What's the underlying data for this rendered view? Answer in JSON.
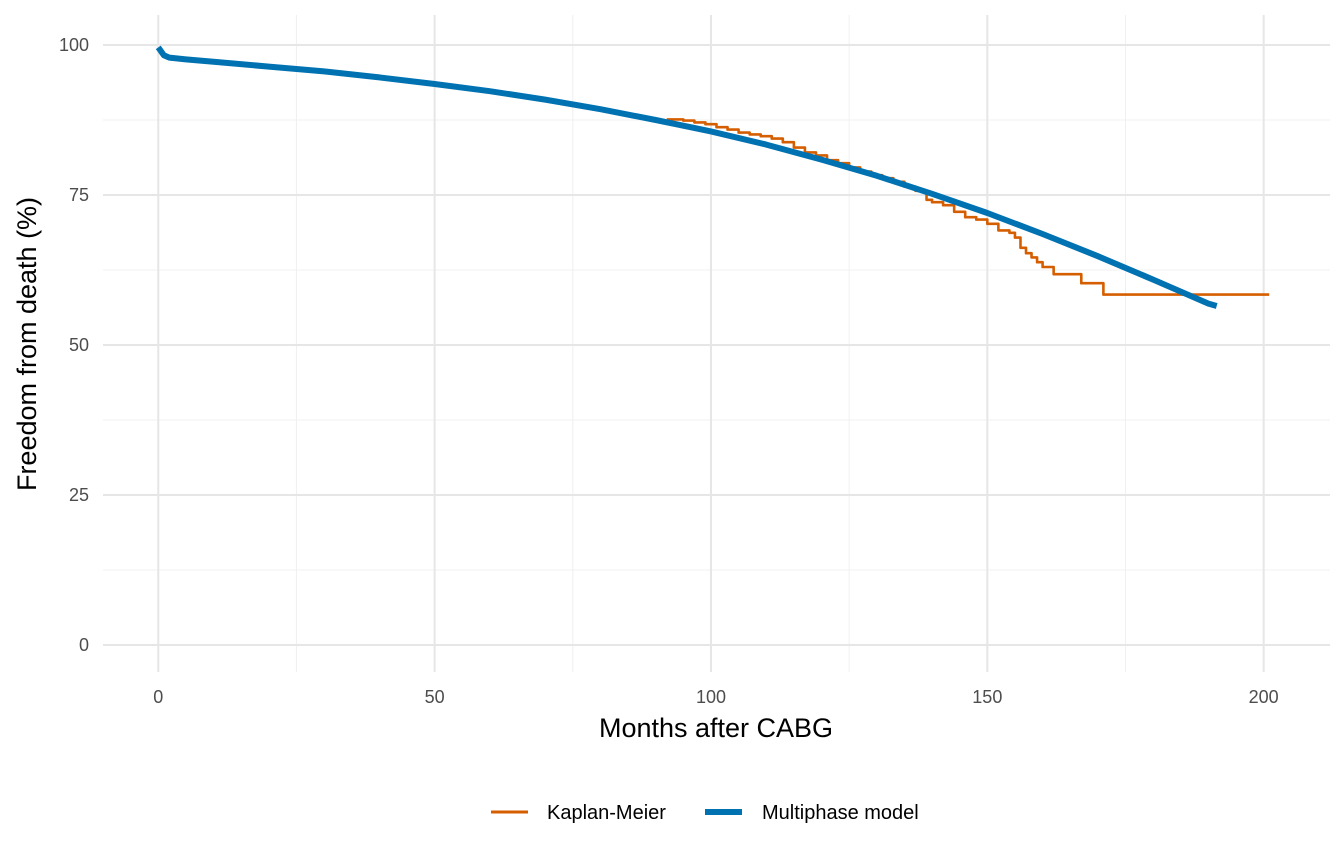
{
  "chart_data": {
    "type": "line",
    "title": "",
    "xlabel": "Months after CABG",
    "ylabel": "Freedom from death (%)",
    "xlim": [
      -10,
      212
    ],
    "ylim": [
      -4.5,
      105
    ],
    "x_ticks": [
      0,
      50,
      100,
      150,
      200
    ],
    "y_ticks": [
      0,
      25,
      50,
      75,
      100
    ],
    "x_tick_labels": [
      "0",
      "50",
      "100",
      "150",
      "200"
    ],
    "y_tick_labels": [
      "0",
      "25",
      "50",
      "75",
      "100"
    ],
    "grid": true,
    "legend_position": "bottom",
    "series": [
      {
        "name": "Kaplan-Meier",
        "color": "#d55e00",
        "style": "step",
        "x": [
          92,
          95,
          97,
          99,
          101,
          103,
          105,
          107,
          109,
          111,
          113,
          115,
          117,
          119,
          121,
          123,
          125,
          127,
          129,
          131,
          133,
          135,
          137,
          139,
          140,
          142,
          144,
          146,
          148,
          150,
          152,
          154,
          155,
          156,
          157,
          158,
          159,
          160,
          162,
          167,
          171,
          180,
          190,
          201
        ],
        "y": [
          87.6,
          87.4,
          87.1,
          86.8,
          86.3,
          85.9,
          85.4,
          85.1,
          84.8,
          84.4,
          83.8,
          82.9,
          82.1,
          81.6,
          80.8,
          80.3,
          79.6,
          78.9,
          78.3,
          77.8,
          77.2,
          76.4,
          75.7,
          74.2,
          73.8,
          73.3,
          72.2,
          71.3,
          70.9,
          70.2,
          69.1,
          68.7,
          67.9,
          66.2,
          65.3,
          64.6,
          63.8,
          63.0,
          61.8,
          60.3,
          58.4,
          58.4,
          58.4,
          58.4
        ]
      },
      {
        "name": "Multiphase model",
        "color": "#0072b2",
        "style": "smooth",
        "x": [
          0,
          1,
          2,
          5,
          10,
          20,
          30,
          40,
          50,
          60,
          70,
          80,
          90,
          100,
          110,
          120,
          130,
          140,
          150,
          160,
          170,
          180,
          190,
          191.5
        ],
        "y": [
          99.6,
          98.3,
          97.9,
          97.6,
          97.2,
          96.4,
          95.6,
          94.6,
          93.5,
          92.3,
          90.9,
          89.3,
          87.5,
          85.6,
          83.4,
          80.9,
          78.2,
          75.2,
          72.0,
          68.5,
          64.8,
          60.9,
          56.9,
          56.5
        ]
      }
    ]
  }
}
